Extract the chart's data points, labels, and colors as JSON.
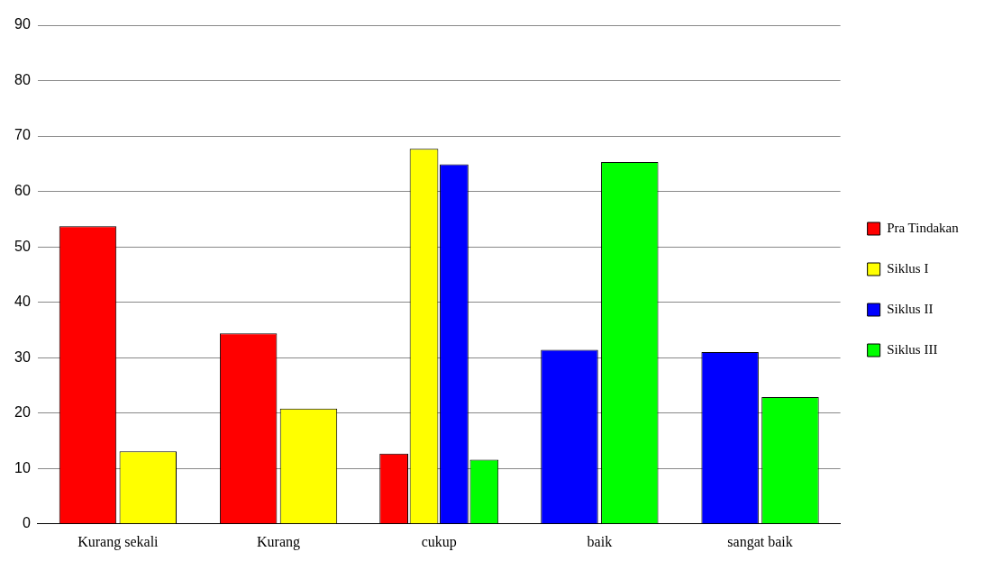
{
  "chart_data": {
    "type": "bar",
    "categories": [
      "Kurang sekali",
      "Kurang",
      "cukup",
      "baik",
      "sangat baik"
    ],
    "series": [
      {
        "name": "Pra Tindakan",
        "color": "#ff0000",
        "values": [
          53.7,
          34.4,
          12.7,
          null,
          null
        ]
      },
      {
        "name": "Siklus I",
        "color": "#ffff00",
        "values": [
          13.1,
          20.8,
          67.7,
          null,
          null
        ]
      },
      {
        "name": "Siklus II",
        "color": "#0000ff",
        "values": [
          null,
          null,
          64.9,
          31.4,
          31.0
        ]
      },
      {
        "name": "Siklus III",
        "color": "#00ff00",
        "values": [
          null,
          null,
          11.6,
          65.3,
          22.9
        ]
      }
    ],
    "ylim": [
      0,
      90
    ],
    "yticks": [
      0,
      10,
      20,
      30,
      40,
      50,
      60,
      70,
      80,
      90
    ],
    "grid": "y",
    "legend": "right"
  }
}
